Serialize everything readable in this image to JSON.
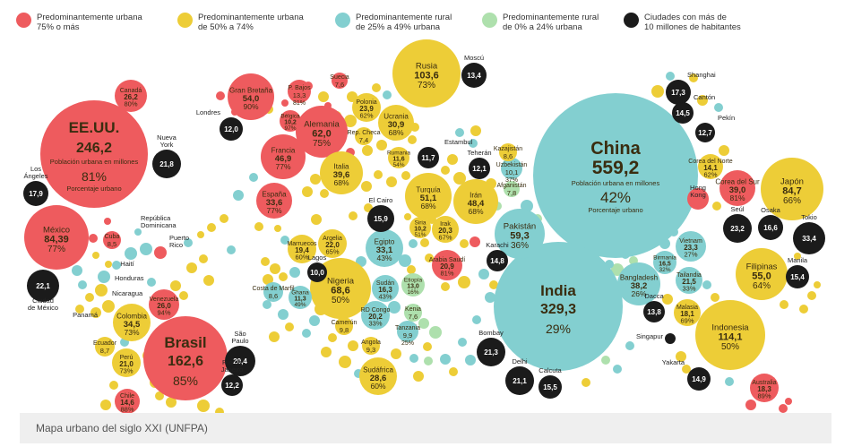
{
  "caption": "Mapa urbano del siglo XXI (UNFPA)",
  "legend": [
    {
      "key": "u",
      "color": "#ee5b5e",
      "text": "Predominantemente urbana\n75% o más"
    },
    {
      "key": "m",
      "color": "#edcd37",
      "text": "Predominantemente urbana\nde 50% a 74%"
    },
    {
      "key": "r",
      "color": "#83cfd0",
      "text": "Predominantemente rural\nde 25% a 49% urbana"
    },
    {
      "key": "l",
      "color": "#aee0ad",
      "text": "Predominantemente rural\nde 0% a 24% urbana"
    },
    {
      "key": "c",
      "color": "#1b1b1b",
      "text": "Ciudades con más de\n10 millones de habitantes"
    }
  ],
  "chart_data": {
    "type": "bubble",
    "size_unit": "Población urbana en millones",
    "annotations": {
      "pop_label": "Población urbana en millones",
      "pct_label": "Porcentaje urbano",
      "pop_label_lines": [
        "Población urbana en millones"
      ],
      "pct_label_short": "Porcentaje urbano"
    },
    "colors": {
      "u": "#ee5b5e",
      "m": "#edcd37",
      "r": "#83cfd0",
      "l": "#aee0ad",
      "c": "#1b1b1b"
    },
    "nodes": [
      {
        "id": "eeuu",
        "name": "EE.UU.",
        "value": "246,2",
        "pct": "81%",
        "cat": "u",
        "sub1": "Población urbana en millones",
        "sub2": "Porcentaje urbano"
      },
      {
        "id": "china",
        "name": "China",
        "value": "559,2",
        "pct": "42%",
        "cat": "r",
        "sub1": "Población urbana en millones",
        "sub2": "Porcentaje urbano"
      },
      {
        "id": "india",
        "name": "India",
        "value": "329,3",
        "pct": "29%",
        "cat": "r"
      },
      {
        "id": "brasil",
        "name": "Brasil",
        "value": "162,6",
        "pct": "85%",
        "cat": "u"
      },
      {
        "id": "rusia",
        "name": "Rusia",
        "value": "103,6",
        "pct": "73%",
        "cat": "m"
      },
      {
        "id": "mexico",
        "name": "México",
        "value": "84,39",
        "pct": "77%",
        "cat": "u"
      },
      {
        "id": "japon",
        "name": "Japón",
        "value": "84,7",
        "pct": "66%",
        "cat": "m"
      },
      {
        "id": "indonesia",
        "name": "Indonesia",
        "value": "114,1",
        "pct": "50%",
        "cat": "m"
      },
      {
        "id": "nigeria",
        "name": "Nigeria",
        "value": "68,6",
        "pct": "50%",
        "cat": "m"
      },
      {
        "id": "alemania",
        "name": "Alemania",
        "value": "62,0",
        "pct": "75%",
        "cat": "u"
      },
      {
        "id": "gbretana",
        "name": "Gran Bretaña",
        "value": "54,0",
        "pct": "90%",
        "cat": "u"
      },
      {
        "id": "filipinas",
        "name": "Filipinas",
        "value": "55,0",
        "pct": "64%",
        "cat": "m"
      },
      {
        "id": "turquia",
        "name": "Turquía",
        "value": "51,1",
        "pct": "68%",
        "cat": "m"
      },
      {
        "id": "francia",
        "name": "Francia",
        "value": "46,9",
        "pct": "77%",
        "cat": "u"
      },
      {
        "id": "iran",
        "name": "Irán",
        "value": "48,4",
        "pct": "68%",
        "cat": "m"
      },
      {
        "id": "italia",
        "name": "Italia",
        "value": "39,6",
        "pct": "68%",
        "cat": "m"
      },
      {
        "id": "espana",
        "name": "España",
        "value": "33,6",
        "pct": "77%",
        "cat": "u"
      },
      {
        "id": "pakistan",
        "name": "Pakistán",
        "value": "59,3",
        "pct": "36%",
        "cat": "r"
      },
      {
        "id": "bangladesh",
        "name": "Bangladesh",
        "value": "38,2",
        "pct": "26%",
        "cat": "r"
      },
      {
        "id": "coreasur",
        "name": "Corea del Sur",
        "value": "39,0",
        "pct": "81%",
        "cat": "u"
      },
      {
        "id": "colombia",
        "name": "Colombia",
        "value": "34,5",
        "pct": "73%",
        "cat": "m"
      },
      {
        "id": "ucrania",
        "name": "Ucrania",
        "value": "30,9",
        "pct": "68%",
        "cat": "m"
      },
      {
        "id": "sudafrica",
        "name": "Sudáfrica",
        "value": "28,6",
        "pct": "60%",
        "cat": "m"
      },
      {
        "id": "venezuela",
        "name": "Venezuela",
        "value": "26,0",
        "pct": "94%",
        "cat": "u"
      },
      {
        "id": "egipto",
        "name": "Egipto",
        "value": "33,1",
        "pct": "43%",
        "cat": "r"
      },
      {
        "id": "canada",
        "name": "Canadá",
        "value": "26,2",
        "pct": "80%",
        "cat": "u"
      },
      {
        "id": "polonia",
        "name": "Polonia",
        "value": "23,9",
        "pct": "62%",
        "cat": "m"
      },
      {
        "id": "vietnam",
        "name": "Vietnam",
        "value": "23,3",
        "pct": "27%",
        "cat": "r"
      },
      {
        "id": "arabia",
        "name": "Arabia Saudí",
        "value": "20,9",
        "pct": "81%",
        "cat": "u"
      },
      {
        "id": "argelia",
        "name": "Argelia",
        "value": "22,0",
        "pct": "65%",
        "cat": "m"
      },
      {
        "id": "peru",
        "name": "Perú",
        "value": "21,0",
        "pct": "73%",
        "cat": "m"
      },
      {
        "id": "tailandia",
        "name": "Tailandia",
        "value": "21,5",
        "pct": "33%",
        "cat": "r"
      },
      {
        "id": "irak",
        "name": "Irak",
        "value": "20,3",
        "pct": "67%",
        "cat": "m"
      },
      {
        "id": "rdcongo",
        "name": "RD Congo",
        "value": "20,2",
        "pct": "33%",
        "cat": "r"
      },
      {
        "id": "marruecos",
        "name": "Marruecos",
        "value": "19,4",
        "pct": "60%",
        "cat": "m"
      },
      {
        "id": "malasia",
        "name": "Malasia",
        "value": "18,1",
        "pct": "69%",
        "cat": "m"
      },
      {
        "id": "australia",
        "name": "Australia",
        "value": "18,3",
        "pct": "89%",
        "cat": "u"
      },
      {
        "id": "birmania",
        "name": "Birmania",
        "value": "16,5",
        "pct": "32%",
        "cat": "r"
      },
      {
        "id": "sudan",
        "name": "Sudán",
        "value": "16,3",
        "pct": "43%",
        "cat": "r"
      },
      {
        "id": "chile",
        "name": "Chile",
        "value": "14,6",
        "pct": "88%",
        "cat": "u"
      },
      {
        "id": "corenorte",
        "name": "Corea del Norte",
        "value": "14,1",
        "pct": "62%",
        "cat": "m"
      },
      {
        "id": "pbajos",
        "name": "P. Bajos",
        "value": "13,3",
        "pct": "81%",
        "cat": "u"
      },
      {
        "id": "etiopia",
        "name": "Etiopía",
        "value": "13,0",
        "pct": "16%",
        "cat": "l"
      },
      {
        "id": "ghana",
        "name": "Ghana",
        "value": "11,3",
        "pct": "49%",
        "cat": "r"
      },
      {
        "id": "rumania",
        "name": "Rumania",
        "value": "11,6",
        "pct": "54%",
        "cat": "m"
      },
      {
        "id": "belgica",
        "name": "Bélgica",
        "value": "10,2",
        "pct": "97%",
        "cat": "u"
      },
      {
        "id": "uzbekistan",
        "name": "Uzbekistán",
        "value": "10,1",
        "pct": "37%",
        "cat": "r"
      },
      {
        "id": "siria",
        "name": "Siria",
        "value": "10,2",
        "pct": "51%",
        "cat": "m"
      },
      {
        "id": "tanzania",
        "name": "Tanzania",
        "value": "9,9",
        "pct": "25%",
        "cat": "r"
      },
      {
        "id": "camerun",
        "name": "Camerún",
        "value": "9,8",
        "pct": "",
        "cat": "m"
      },
      {
        "id": "angola",
        "name": "Angola",
        "value": "9,3",
        "pct": "",
        "cat": "m"
      },
      {
        "id": "ecuador",
        "name": "Ecuador",
        "value": "8,7",
        "pct": "",
        "cat": "m"
      },
      {
        "id": "cuba",
        "name": "Cuba",
        "value": "8,5",
        "pct": "",
        "cat": "u"
      },
      {
        "id": "kazajistan",
        "name": "Kazajistán",
        "value": "8,6",
        "pct": "",
        "cat": "m"
      },
      {
        "id": "kenia",
        "name": "Kenia",
        "value": "7,6",
        "pct": "",
        "cat": "l"
      },
      {
        "id": "suecia",
        "name": "Suecia",
        "value": "7,6",
        "pct": "",
        "cat": "u"
      },
      {
        "id": "afganistan",
        "name": "Afganistán",
        "value": "7,8",
        "pct": "",
        "cat": "l"
      },
      {
        "id": "repcheca",
        "name": "Rep. Checa",
        "value": "7,4",
        "pct": "",
        "cat": "m"
      },
      {
        "id": "cmarfil",
        "name": "Costa de Marfil",
        "value": "8,6",
        "pct": "",
        "cat": "r"
      },
      {
        "id": "hongkong",
        "name": "Hong Kong",
        "value": "",
        "pct": "",
        "cat": "u"
      },
      {
        "id": "nyork",
        "name": "Nueva York",
        "value": "21,8",
        "pct": "",
        "cat": "c"
      },
      {
        "id": "losangeles",
        "name": "Los Ángeles",
        "value": "17,9",
        "pct": "",
        "cat": "c"
      },
      {
        "id": "cdmexico",
        "name": "Ciudad de México",
        "value": "22,1",
        "pct": "",
        "cat": "c"
      },
      {
        "id": "saopaulo",
        "name": "São Paulo",
        "value": "20,4",
        "pct": "",
        "cat": "c"
      },
      {
        "id": "riojaneiro",
        "name": "Río de Janeiro",
        "value": "12,2",
        "pct": "",
        "cat": "c"
      },
      {
        "id": "londres",
        "name": "Londres",
        "value": "12,0",
        "pct": "",
        "cat": "c"
      },
      {
        "id": "moscu",
        "name": "Moscú",
        "value": "13,4",
        "pct": "",
        "cat": "c"
      },
      {
        "id": "estambul",
        "name": "Estambul",
        "value": "11,7",
        "pct": "",
        "cat": "c"
      },
      {
        "id": "teheran",
        "name": "Teherán",
        "value": "12,1",
        "pct": "",
        "cat": "c"
      },
      {
        "id": "elcairo",
        "name": "El Cairo",
        "value": "15,9",
        "pct": "",
        "cat": "c"
      },
      {
        "id": "lagos",
        "name": "Lagos",
        "value": "10,0",
        "pct": "",
        "cat": "c"
      },
      {
        "id": "karachi",
        "name": "Karachi",
        "value": "14,8",
        "pct": "",
        "cat": "c"
      },
      {
        "id": "bombay",
        "name": "Bombay",
        "value": "21,3",
        "pct": "",
        "cat": "c"
      },
      {
        "id": "delhi",
        "name": "Delhi",
        "value": "21,1",
        "pct": "",
        "cat": "c"
      },
      {
        "id": "calcuta",
        "name": "Calcuta",
        "value": "15,5",
        "pct": "",
        "cat": "c"
      },
      {
        "id": "dacca",
        "name": "Dacca",
        "value": "13,8",
        "pct": "",
        "cat": "c"
      },
      {
        "id": "shanghai",
        "name": "Shanghai",
        "value": "17,3",
        "pct": "",
        "cat": "c"
      },
      {
        "id": "canton",
        "name": "Cantón",
        "value": "14,5",
        "pct": "",
        "cat": "c"
      },
      {
        "id": "pekin",
        "name": "Pekín",
        "value": "12,7",
        "pct": "",
        "cat": "c"
      },
      {
        "id": "seul",
        "name": "Seúl",
        "value": "23,2",
        "pct": "",
        "cat": "c"
      },
      {
        "id": "osaka",
        "name": "Osaka",
        "value": "16,6",
        "pct": "",
        "cat": "c"
      },
      {
        "id": "tokio",
        "name": "Tokio",
        "value": "33,4",
        "pct": "",
        "cat": "c"
      },
      {
        "id": "manila",
        "name": "Manila",
        "value": "15,4",
        "pct": "",
        "cat": "c"
      },
      {
        "id": "yakarta",
        "name": "Yakarta",
        "value": "14,9",
        "pct": "",
        "cat": "c"
      },
      {
        "id": "singapur",
        "name": "Singapur",
        "value": "",
        "pct": "",
        "cat": "c"
      },
      {
        "id": "rdominicana",
        "name": "República Dominicana",
        "value": "",
        "pct": "",
        "cat": "r"
      },
      {
        "id": "prico",
        "name": "Puerto Rico",
        "value": "",
        "pct": "",
        "cat": "u"
      },
      {
        "id": "haiti",
        "name": "Haití",
        "value": "",
        "pct": "",
        "cat": "r"
      },
      {
        "id": "honduras",
        "name": "Honduras",
        "value": "",
        "pct": "",
        "cat": "r"
      },
      {
        "id": "nicaragua",
        "name": "Nicaragua",
        "value": "",
        "pct": "",
        "cat": "m"
      },
      {
        "id": "panama",
        "name": "Panamá",
        "value": "",
        "pct": "",
        "cat": "m"
      }
    ]
  }
}
